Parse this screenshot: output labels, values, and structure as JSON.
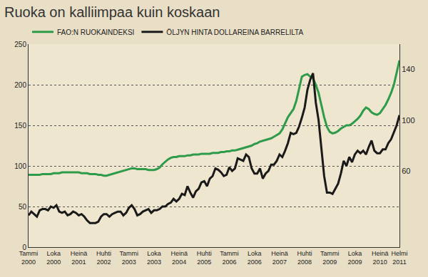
{
  "chart_data": {
    "type": "line",
    "title": "Ruoka on kalliimpaa kuin koskaan",
    "categories": [
      "Tammi 2000",
      null,
      null,
      null,
      null,
      null,
      null,
      null,
      null,
      "Loka 2000",
      null,
      null,
      null,
      null,
      null,
      null,
      null,
      null,
      "Heinä 2001",
      null,
      null,
      null,
      null,
      null,
      null,
      null,
      null,
      "Huhti 2002",
      null,
      null,
      null,
      null,
      null,
      null,
      null,
      null,
      "Tammi 2003",
      null,
      null,
      null,
      null,
      null,
      null,
      null,
      null,
      "Loka 2003",
      null,
      null,
      null,
      null,
      null,
      null,
      null,
      null,
      "Heinä 2004",
      null,
      null,
      null,
      null,
      null,
      null,
      null,
      null,
      "Huhti 2005",
      null,
      null,
      null,
      null,
      null,
      null,
      null,
      null,
      "Tammi 2006",
      null,
      null,
      null,
      null,
      null,
      null,
      null,
      null,
      "Loka 2006",
      null,
      null,
      null,
      null,
      null,
      null,
      null,
      null,
      "Heinä 2007",
      null,
      null,
      null,
      null,
      null,
      null,
      null,
      null,
      "Huhti 2008",
      null,
      null,
      null,
      null,
      null,
      null,
      null,
      null,
      "Tammi 2009",
      null,
      null,
      null,
      null,
      null,
      null,
      null,
      null,
      "Loka 2009",
      null,
      null,
      null,
      null,
      null,
      null,
      null,
      null,
      "Heinä 2010",
      null,
      null,
      null,
      null,
      null,
      null,
      "Helmi 2011"
    ],
    "series": [
      {
        "name": "FAO:N RUOKAINDEKSI",
        "color": "#2e9b4a",
        "values": [
          89,
          89,
          89,
          89,
          89,
          90,
          90,
          90,
          90,
          91,
          91,
          91,
          92,
          92,
          92,
          92,
          92,
          92,
          92,
          91,
          91,
          91,
          90,
          90,
          90,
          89,
          89,
          88,
          88,
          89,
          90,
          91,
          92,
          93,
          94,
          95,
          96,
          97,
          97,
          96,
          96,
          96,
          96,
          95,
          95,
          95,
          96,
          98,
          102,
          105,
          108,
          110,
          111,
          111,
          112,
          112,
          112,
          113,
          113,
          114,
          114,
          114,
          115,
          115,
          115,
          115,
          116,
          116,
          116,
          117,
          117,
          118,
          118,
          119,
          119,
          120,
          121,
          122,
          123,
          124,
          125,
          127,
          128,
          130,
          131,
          132,
          133,
          134,
          136,
          138,
          140,
          145,
          152,
          160,
          165,
          170,
          180,
          195,
          210,
          212,
          213,
          210,
          208,
          200,
          190,
          175,
          160,
          148,
          142,
          140,
          141,
          143,
          146,
          148,
          150,
          150,
          152,
          155,
          158,
          162,
          168,
          172,
          170,
          166,
          164,
          163,
          165,
          170,
          175,
          182,
          190,
          200,
          215,
          230
        ]
      },
      {
        "name": "ÖLJYN HINTA DOLLAREINA BARRELILTA",
        "color": "#1a1a1a",
        "axis": "y2",
        "values": [
          25,
          28,
          26,
          24,
          29,
          30,
          30,
          29,
          32,
          31,
          33,
          28,
          27,
          28,
          25,
          26,
          28,
          27,
          25,
          26,
          24,
          21,
          19,
          19,
          19,
          20,
          24,
          26,
          26,
          24,
          26,
          27,
          28,
          28,
          25,
          27,
          31,
          33,
          30,
          25,
          26,
          28,
          29,
          30,
          27,
          29,
          29,
          30,
          32,
          32,
          34,
          35,
          38,
          36,
          38,
          42,
          41,
          48,
          43,
          39,
          44,
          46,
          51,
          52,
          48,
          54,
          56,
          62,
          61,
          59,
          56,
          57,
          63,
          60,
          62,
          70,
          69,
          68,
          73,
          71,
          62,
          58,
          58,
          62,
          54,
          58,
          60,
          65,
          65,
          68,
          73,
          71,
          76,
          82,
          90,
          89,
          90,
          95,
          102,
          110,
          124,
          132,
          137,
          114,
          100,
          76,
          56,
          43,
          43,
          42,
          46,
          50,
          58,
          68,
          64,
          71,
          67,
          73,
          76,
          74,
          76,
          73,
          79,
          84,
          76,
          74,
          74,
          77,
          77,
          82,
          85,
          91,
          96,
          104
        ]
      }
    ],
    "ylim": [
      0,
      250
    ],
    "yticks": [
      0,
      50,
      100,
      150,
      200,
      250
    ],
    "y2lim": [
      0,
      160
    ],
    "y2ticks": [
      60,
      100,
      140
    ],
    "grid": true,
    "legend": "top left"
  }
}
